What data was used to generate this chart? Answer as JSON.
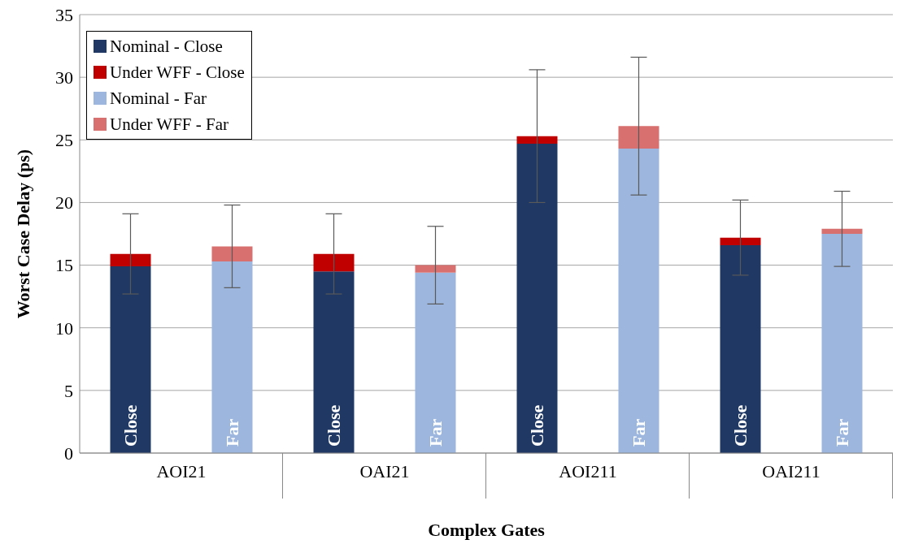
{
  "chart_data": {
    "type": "bar",
    "stacked": true,
    "xlabel": "Complex Gates",
    "ylabel": "Worst Case Delay (ps)",
    "categories": [
      "Close",
      "Far",
      "Close",
      "Far",
      "Close",
      "Far",
      "Close",
      "Far"
    ],
    "series": [
      {
        "name": "Nominal - Close",
        "color": "#1f3864",
        "values": [
          14.9,
          null,
          14.5,
          null,
          24.7,
          null,
          16.6,
          null
        ]
      },
      {
        "name": "Under WFF - Close",
        "color": "#c00000",
        "values": [
          1.0,
          null,
          1.4,
          null,
          0.6,
          null,
          0.6,
          null
        ],
        "errors": [
          3.2,
          null,
          3.2,
          null,
          5.3,
          null,
          3.0,
          null
        ]
      },
      {
        "name": "Nominal - Far",
        "color": "#9db6dd",
        "values": [
          null,
          15.3,
          null,
          14.4,
          null,
          24.3,
          null,
          17.5
        ]
      },
      {
        "name": "Under WFF - Far",
        "color": "#d97070",
        "values": [
          null,
          1.2,
          null,
          0.6,
          null,
          1.8,
          null,
          0.4
        ],
        "errors": [
          null,
          3.3,
          null,
          3.1,
          null,
          5.5,
          null,
          3.0
        ]
      }
    ],
    "annotations": [
      "AOI21",
      "OAI21",
      "AOI211",
      "OAI211"
    ],
    "ylim": [
      0,
      35
    ],
    "yticks": [
      0,
      5,
      10,
      15,
      20,
      25,
      30,
      35
    ],
    "grid": "y",
    "legend": "top left"
  }
}
